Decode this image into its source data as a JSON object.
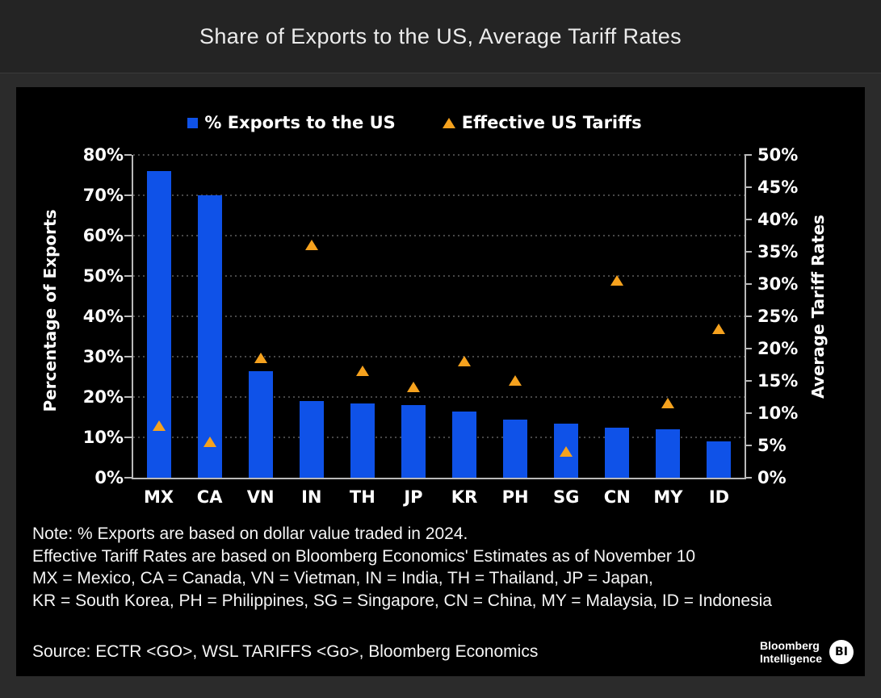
{
  "header": {
    "title": "Share of Exports to the US, Average Tariff Rates"
  },
  "legend": {
    "items": [
      {
        "label": "% Exports to the US",
        "marker": "square",
        "color": "#0f52e8"
      },
      {
        "label": "Effective US Tariffs",
        "marker": "triangle",
        "color": "#f6a21e"
      }
    ]
  },
  "chart_data": {
    "type": "bar",
    "title": "Share of Exports to the US, Average Tariff Rates",
    "categories": [
      "MX",
      "CA",
      "VN",
      "IN",
      "TH",
      "JP",
      "KR",
      "PH",
      "SG",
      "CN",
      "MY",
      "ID"
    ],
    "series": [
      {
        "name": "% Exports to the US",
        "type": "bar",
        "axis": "left",
        "color": "#0f52e8",
        "values": [
          76,
          70,
          26.5,
          19,
          18.5,
          18,
          16.5,
          14.5,
          13.5,
          12.5,
          12,
          9
        ]
      },
      {
        "name": "Effective US Tariffs",
        "type": "scatter",
        "marker": "triangle",
        "axis": "right",
        "color": "#f6a21e",
        "values": [
          8,
          5.5,
          18.5,
          36,
          16.5,
          14,
          18,
          15,
          4,
          30.5,
          11.5,
          23
        ]
      }
    ],
    "left_axis": {
      "title": "Percentage of Exports",
      "min": 0,
      "max": 80,
      "step": 10,
      "tick_labels": [
        "0%",
        "10%",
        "20%",
        "30%",
        "40%",
        "50%",
        "60%",
        "70%",
        "80%"
      ]
    },
    "right_axis": {
      "title": "Average Tariff Rates",
      "min": 0,
      "max": 50,
      "step": 5,
      "tick_labels": [
        "0%",
        "5%",
        "10%",
        "15%",
        "20%",
        "25%",
        "30%",
        "35%",
        "40%",
        "45%",
        "50%"
      ]
    },
    "grid": true,
    "legend_position": "top",
    "background": "#000000"
  },
  "notes": {
    "lines": [
      "Note: % Exports are based on dollar value traded in 2024.",
      "Effective Tariff Rates are based on Bloomberg Economics' Estimates as of November 10",
      "MX = Mexico, CA = Canada, VN = Vietman, IN = India, TH = Thailand, JP = Japan,",
      "KR = South Korea, PH = Philippines, SG = Singapore, CN = China, MY = Malaysia, ID = Indonesia"
    ]
  },
  "footer": {
    "source": "Source: ECTR <GO>, WSL TARIFFS <Go>, Bloomberg Economics",
    "brand_line1": "Bloomberg",
    "brand_line2": "Intelligence",
    "badge": "BI"
  }
}
